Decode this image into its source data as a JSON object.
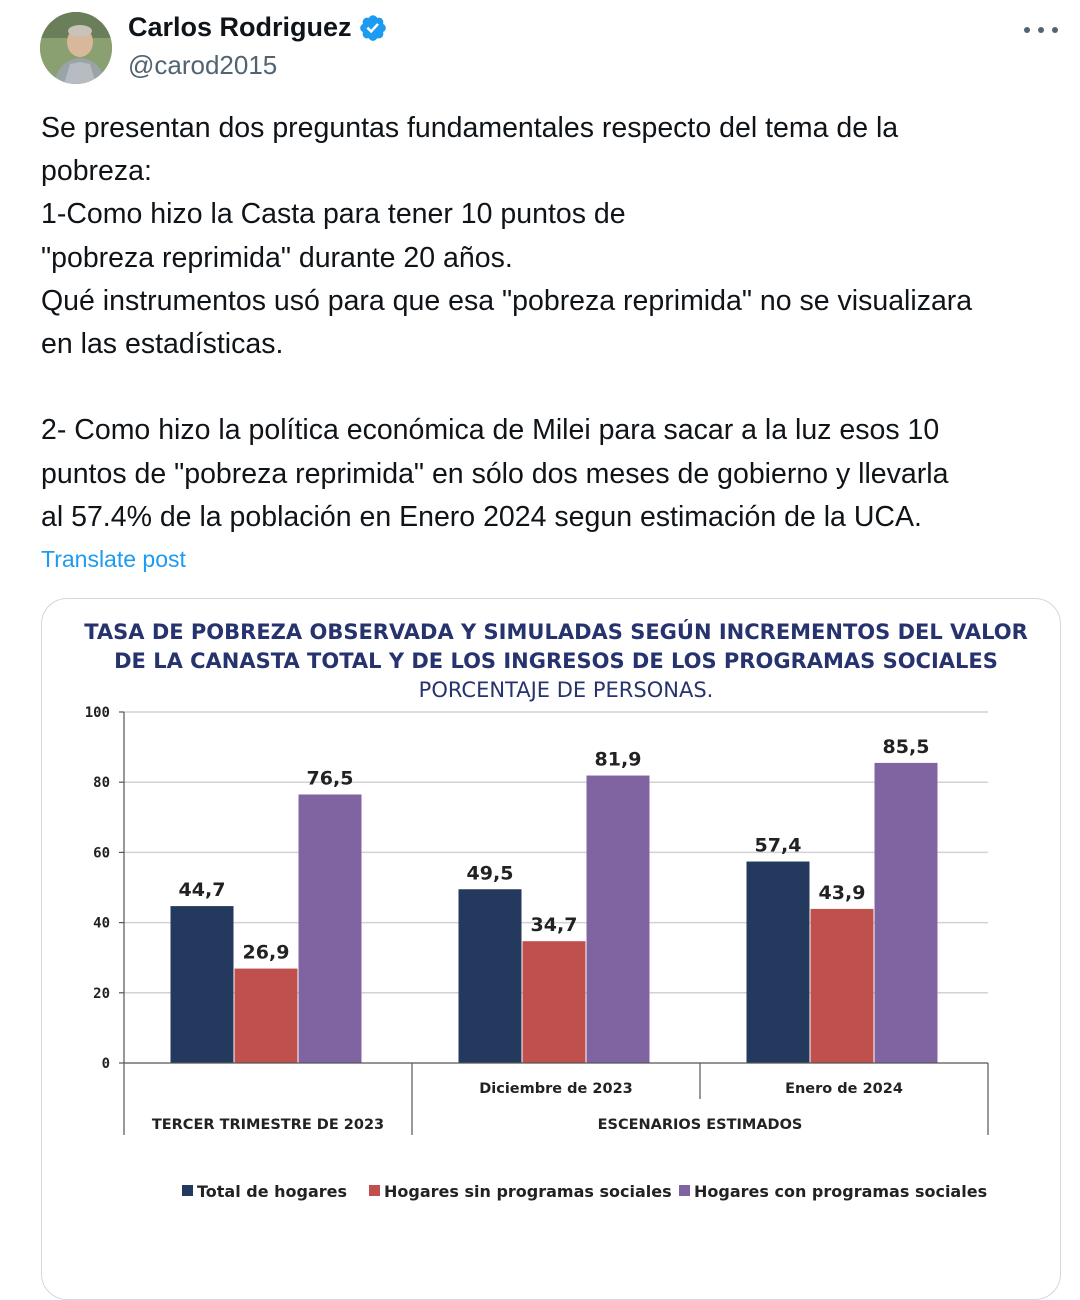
{
  "author": {
    "name": "Carlos Rodriguez",
    "handle": "@carod2015",
    "verified": true,
    "avatar_icon": "person-photo-avatar"
  },
  "post": {
    "lines": [
      "Se presentan dos preguntas  fundamentales respecto del tema de la",
      "pobreza:",
      "1-Como hizo la Casta para tener 10 puntos de",
      "\"pobreza reprimida\" durante 20 años.",
      "Qué instrumentos usó para que esa \"pobreza reprimida\" no se visualizara",
      "en las estadísticas.",
      "",
      "2- Como hizo la política económica de Milei para sacar a la luz esos 10",
      "puntos de \"pobreza reprimida\" en sólo dos meses de gobierno y llevarla",
      "al 57.4% de la población en Enero 2024 segun estimación de la UCA."
    ],
    "translate_label": "Translate post"
  },
  "colors": {
    "series_total": "#233a5e",
    "series_sin": "#c0504d",
    "series_con": "#8064a2",
    "title": "#26336e",
    "link": "#1d9bf0"
  },
  "chart_data": {
    "type": "bar",
    "title": "TASA DE POBREZA OBSERVADA Y SIMULADAS SEGÚN INCREMENTOS DEL VALOR DE LA CANASTA TOTAL Y DE LOS INGRESOS DE LOS PROGRAMAS SOCIALES",
    "title_lines": [
      "TASA DE POBREZA OBSERVADA Y SIMULADAS SEGÚN INCREMENTOS DEL VALOR",
      "DE LA CANASTA TOTAL Y DE LOS INGRESOS DE LOS PROGRAMAS SOCIALES"
    ],
    "subtitle": "PORCENTAJE DE PERSONAS.",
    "categories": [
      "",
      "Diciembre de 2023",
      "Enero de 2024"
    ],
    "group_labels": [
      "TERCER TRIMESTRE DE 2023",
      "ESCENARIOS ESTIMADOS"
    ],
    "series": [
      {
        "name": "Total de hogares",
        "values": [
          44.7,
          49.5,
          57.4
        ],
        "labels": [
          "44,7",
          "49,5",
          "57,4"
        ]
      },
      {
        "name": "Hogares sin programas sociales",
        "values": [
          26.9,
          34.7,
          43.9
        ],
        "labels": [
          "26,9",
          "34,7",
          "43,9"
        ]
      },
      {
        "name": "Hogares con programas sociales",
        "values": [
          76.5,
          81.9,
          85.5
        ],
        "labels": [
          "76,5",
          "81,9",
          "85,5"
        ]
      }
    ],
    "yticks": [
      0,
      20,
      40,
      60,
      80,
      100
    ],
    "ylim": [
      0,
      100
    ],
    "grid": true,
    "legend_position": "bottom"
  }
}
